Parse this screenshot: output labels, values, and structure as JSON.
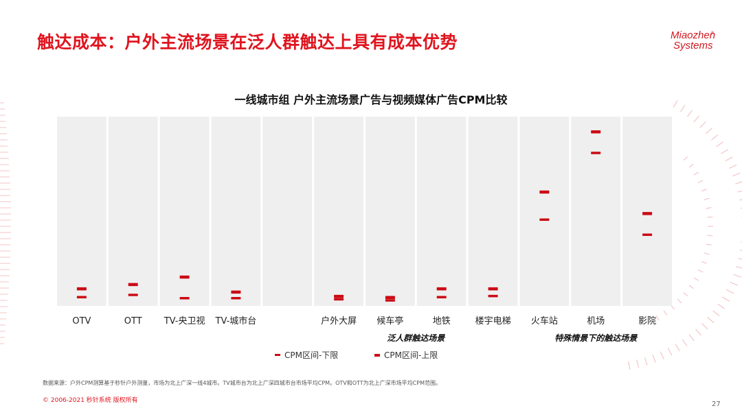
{
  "page": {
    "title": "触达成本：户外主流场景在泛人群触达上具有成本优势",
    "logo_line1": "Miaozhen",
    "logo_line2": "Systems",
    "logo_mark": "®",
    "source_note": "数据来源：户外CPM测算基于秒针户外测量，市场为北上广深一线4城市。TV城市台为北上广深四城市台市场平均CPM。OTV和OTT为北上广深市场平均CPM范围。",
    "copyright": "© 2006-2021 秒针系统 版权所有",
    "page_number": "27"
  },
  "colors": {
    "accent": "#e0141e",
    "marker": "#cc0a14",
    "column_bg": "#efefef"
  },
  "chart_data": {
    "type": "range-dot",
    "title": "一线城市组 户外主流场景广告与视频媒体广告CPM比较",
    "categories": [
      "OTV",
      "OTT",
      "TV-央卫视",
      "TV-城市台",
      "",
      "户外大屏",
      "候车亭",
      "地铁",
      "楼宇电梯",
      "火车站",
      "机场",
      "影院"
    ],
    "series": [
      {
        "name": "CPM区间-下限",
        "values": [
          4,
          5,
          3.5,
          3.5,
          null,
          3,
          2.5,
          4,
          4.5,
          40,
          71,
          33
        ]
      },
      {
        "name": "CPM区间-上限",
        "values": [
          8,
          10,
          13.5,
          6.5,
          null,
          4.5,
          4,
          8,
          8,
          53,
          81,
          43
        ]
      }
    ],
    "group_labels": [
      {
        "label": "泛人群触达场景",
        "from": 5,
        "to": 8
      },
      {
        "label": "特殊情景下的触达场景",
        "from": 9,
        "to": 11
      }
    ],
    "ylim": [
      0,
      88
    ],
    "grid": false,
    "y_axis_shown": false,
    "legend_position": "bottom-center"
  }
}
